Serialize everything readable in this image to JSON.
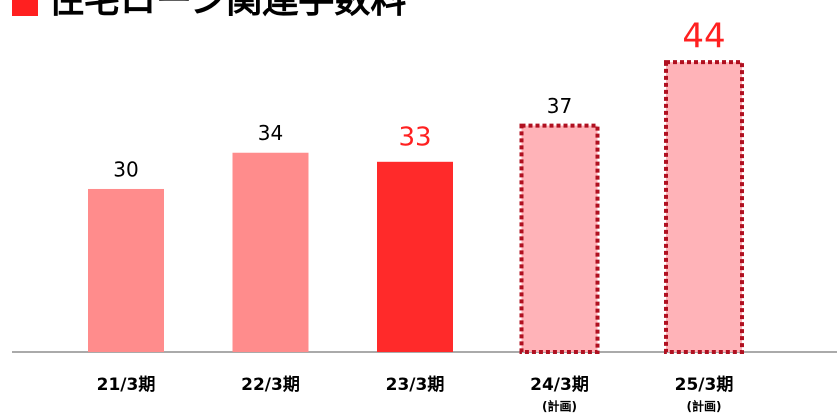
{
  "chart_data": {
    "type": "bar",
    "title": "住宅ローン関連手数料",
    "categories": [
      "21/3期",
      "22/3期",
      "23/3期",
      "24/3期",
      "25/3期"
    ],
    "sublabels": [
      null,
      null,
      null,
      "(計画)",
      "(計画)"
    ],
    "values": [
      30,
      34,
      33,
      37,
      44
    ],
    "bar_colors": [
      "#ff8c8c",
      "#ff8c8c",
      "#ff2a2a",
      "#ffb3b8",
      "#ffb3b8"
    ],
    "dashed": [
      false,
      false,
      false,
      true,
      true
    ],
    "label_colors": [
      "#000000",
      "#000000",
      "#ff2020",
      "#000000",
      "#ff2020"
    ],
    "ylim": [
      12,
      47
    ]
  }
}
